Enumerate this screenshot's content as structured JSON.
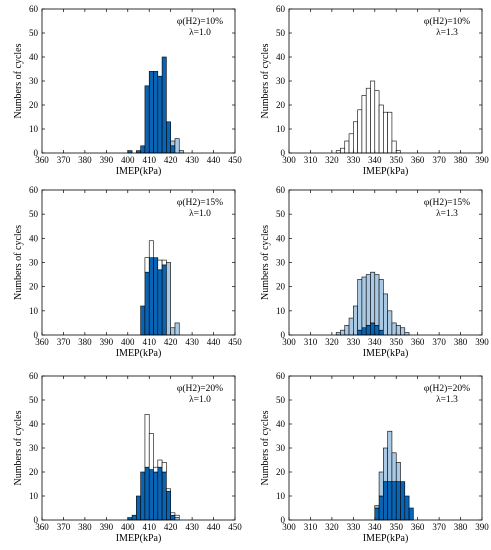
{
  "colors": {
    "dark": "#0a64b4",
    "light": "#a9c9e4",
    "outline": "#000000",
    "axis": "#000000",
    "background": "#ffffff"
  },
  "chart_data": [
    {
      "type": "bar",
      "subtype": "stacked-histogram",
      "title": "",
      "xlabel": "IMEP(kPa)",
      "ylabel": "Numbers of cycles",
      "xlim": [
        360,
        450
      ],
      "ylim": [
        0,
        60
      ],
      "xticks": [
        360,
        370,
        380,
        390,
        400,
        410,
        420,
        430,
        440,
        450
      ],
      "yticks": [
        0,
        10,
        20,
        30,
        40,
        50,
        60
      ],
      "annotation": [
        "φ(H2)=10%",
        "λ=1.0"
      ],
      "legend": "none",
      "grid": false,
      "bin_width": 2,
      "x": [
        401,
        403,
        405,
        407,
        409,
        411,
        413,
        415,
        417,
        419,
        421,
        423,
        425
      ],
      "series": [
        {
          "values": [
            1,
            0,
            1,
            3,
            28,
            34,
            34,
            32,
            40,
            13,
            3,
            0,
            0
          ]
        },
        {
          "values": [
            0,
            0,
            0,
            0,
            0,
            0,
            0,
            0,
            0,
            0,
            2,
            6,
            1
          ]
        },
        {
          "values": [
            0,
            0,
            0,
            0,
            0,
            0,
            0,
            0,
            0,
            0,
            0,
            0,
            0
          ]
        }
      ]
    },
    {
      "type": "bar",
      "subtype": "stacked-histogram",
      "title": "",
      "xlabel": "IMEP(kPa)",
      "ylabel": "Numbers of cycles",
      "xlim": [
        300,
        390
      ],
      "ylim": [
        0,
        60
      ],
      "xticks": [
        300,
        310,
        320,
        330,
        340,
        350,
        360,
        370,
        380,
        390
      ],
      "yticks": [
        0,
        10,
        20,
        30,
        40,
        50,
        60
      ],
      "annotation": [
        "φ(H2)=10%",
        "λ=1.3"
      ],
      "legend": "none",
      "grid": false,
      "bin_width": 2,
      "x": [
        323,
        325,
        327,
        329,
        331,
        333,
        335,
        337,
        339,
        341,
        343,
        345,
        347,
        349,
        351,
        353,
        355
      ],
      "series": [
        {
          "values": [
            0,
            0,
            0,
            0,
            0,
            0,
            0,
            0,
            0,
            0,
            0,
            0,
            0,
            0,
            0,
            0,
            0
          ]
        },
        {
          "values": [
            0,
            0,
            0,
            0,
            0,
            0,
            0,
            0,
            0,
            0,
            0,
            0,
            0,
            0,
            0,
            0,
            0
          ]
        },
        {
          "values": [
            1,
            2,
            5,
            8,
            13,
            18,
            24,
            27,
            30,
            26,
            20,
            17,
            17,
            5,
            1,
            0,
            0
          ]
        }
      ]
    },
    {
      "type": "bar",
      "subtype": "stacked-histogram",
      "title": "",
      "xlabel": "IMEP(kPa)",
      "ylabel": "Numbers of cycles",
      "xlim": [
        360,
        450
      ],
      "ylim": [
        0,
        60
      ],
      "xticks": [
        360,
        370,
        380,
        390,
        400,
        410,
        420,
        430,
        440,
        450
      ],
      "yticks": [
        0,
        10,
        20,
        30,
        40,
        50,
        60
      ],
      "annotation": [
        "φ(H2)=15%",
        "λ=1.0"
      ],
      "legend": "none",
      "grid": false,
      "bin_width": 2,
      "x": [
        403,
        405,
        407,
        409,
        411,
        413,
        415,
        417,
        419,
        421,
        423
      ],
      "series": [
        {
          "values": [
            0,
            0,
            12,
            26,
            32,
            32,
            27,
            29,
            0,
            0,
            0
          ]
        },
        {
          "values": [
            0,
            0,
            0,
            0,
            0,
            0,
            0,
            0,
            30,
            3,
            5
          ]
        },
        {
          "values": [
            0,
            0,
            0,
            6,
            7,
            0,
            4,
            2,
            0,
            0,
            0
          ]
        }
      ]
    },
    {
      "type": "bar",
      "subtype": "stacked-histogram",
      "title": "",
      "xlabel": "IMEP(kPa)",
      "ylabel": "Numbers of cycles",
      "xlim": [
        300,
        390
      ],
      "ylim": [
        0,
        60
      ],
      "xticks": [
        300,
        310,
        320,
        330,
        340,
        350,
        360,
        370,
        380,
        390
      ],
      "yticks": [
        0,
        10,
        20,
        30,
        40,
        50,
        60
      ],
      "annotation": [
        "φ(H2)=15%",
        "λ=1.3"
      ],
      "legend": "none",
      "grid": false,
      "bin_width": 2,
      "x": [
        321,
        323,
        325,
        327,
        329,
        331,
        333,
        335,
        337,
        339,
        341,
        343,
        345,
        347,
        349,
        351,
        353,
        355,
        357
      ],
      "series": [
        {
          "values": [
            0,
            0,
            0,
            0,
            0,
            0,
            2,
            3,
            4,
            5,
            4,
            2,
            0,
            0,
            0,
            0,
            0,
            0,
            0
          ]
        },
        {
          "values": [
            0,
            1,
            2,
            4,
            7,
            12,
            21,
            21,
            21,
            21,
            21,
            21,
            17,
            10,
            5,
            4,
            3,
            1,
            0
          ]
        },
        {
          "values": [
            0,
            0,
            0,
            0,
            0,
            0,
            0,
            0,
            0,
            0,
            0,
            0,
            0,
            0,
            0,
            0,
            0,
            0,
            0
          ]
        }
      ]
    },
    {
      "type": "bar",
      "subtype": "stacked-histogram",
      "title": "",
      "xlabel": "IMEP(kPa)",
      "ylabel": "Numbers of cycles",
      "xlim": [
        360,
        450
      ],
      "ylim": [
        0,
        60
      ],
      "xticks": [
        360,
        370,
        380,
        390,
        400,
        410,
        420,
        430,
        440,
        450
      ],
      "yticks": [
        0,
        10,
        20,
        30,
        40,
        50,
        60
      ],
      "annotation": [
        "φ(H2)=20%",
        "λ=1.0"
      ],
      "legend": "none",
      "grid": false,
      "bin_width": 2,
      "x": [
        399,
        401,
        403,
        405,
        407,
        409,
        411,
        413,
        415,
        417,
        419,
        421,
        423,
        425
      ],
      "series": [
        {
          "values": [
            0,
            1,
            2,
            10,
            20,
            22,
            21,
            20,
            22,
            20,
            12,
            2,
            0,
            0
          ]
        },
        {
          "values": [
            0,
            0,
            0,
            0,
            0,
            0,
            0,
            0,
            0,
            0,
            0,
            0,
            1,
            0
          ]
        },
        {
          "values": [
            0,
            0,
            0,
            0,
            0,
            22,
            15,
            2,
            3,
            4,
            1,
            1,
            1,
            0
          ]
        }
      ]
    },
    {
      "type": "bar",
      "subtype": "stacked-histogram",
      "title": "",
      "xlabel": "IMEP(kPa)",
      "ylabel": "Numbers of cycles",
      "xlim": [
        300,
        390
      ],
      "ylim": [
        0,
        60
      ],
      "xticks": [
        300,
        310,
        320,
        330,
        340,
        350,
        360,
        370,
        380,
        390
      ],
      "yticks": [
        0,
        10,
        20,
        30,
        40,
        50,
        60
      ],
      "annotation": [
        "φ(H2)=20%",
        "λ=1.3"
      ],
      "legend": "none",
      "grid": false,
      "bin_width": 2,
      "x": [
        331,
        333,
        335,
        337,
        339,
        341,
        343,
        345,
        347,
        349,
        351,
        353,
        355,
        357,
        359
      ],
      "series": [
        {
          "values": [
            0,
            0,
            0,
            0,
            0,
            5,
            10,
            16,
            16,
            16,
            16,
            16,
            10,
            5,
            0
          ]
        },
        {
          "values": [
            0,
            0,
            0,
            0,
            0,
            1,
            10,
            14,
            21,
            12,
            8,
            0,
            0,
            0,
            0
          ]
        },
        {
          "values": [
            0,
            0,
            0,
            0,
            0,
            0,
            0,
            0,
            0,
            0,
            0,
            0,
            0,
            0,
            0
          ]
        }
      ]
    }
  ]
}
